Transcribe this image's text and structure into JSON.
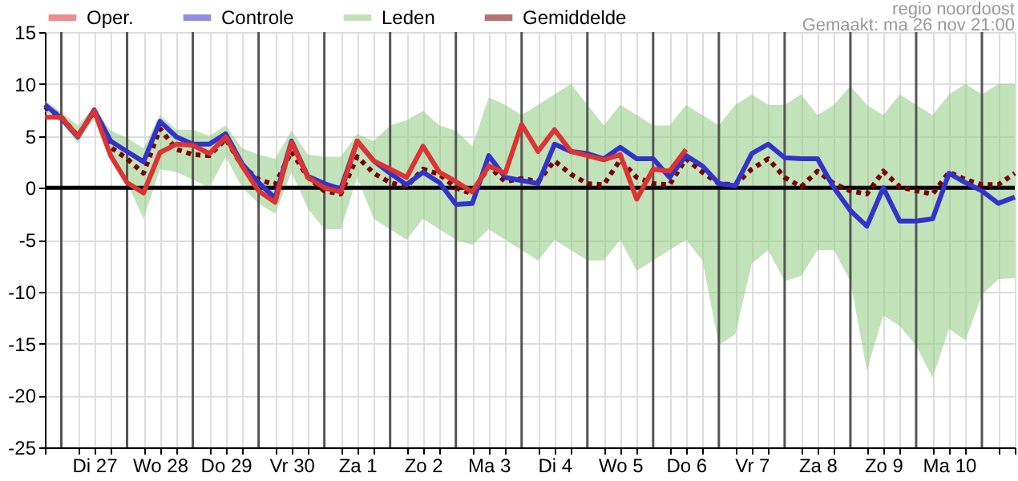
{
  "chart_data": {
    "type": "line",
    "annotations": [
      "regio noordoost",
      "Gemaakt: ma 26 nov 21:00"
    ],
    "x": [
      "--11-26T18:00",
      "--11-27T00:00",
      "--11-27T06:00",
      "--11-27T12:00",
      "--11-27T18:00",
      "--11-28T00:00",
      "--11-28T06:00",
      "--11-28T12:00",
      "--11-28T18:00",
      "--11-29T00:00",
      "--11-29T06:00",
      "--11-29T12:00",
      "--11-29T18:00",
      "--11-30T00:00",
      "--11-30T06:00",
      "--11-30T12:00",
      "--11-30T18:00",
      "--12-01T00:00",
      "--12-01T06:00",
      "--12-01T12:00",
      "--12-01T18:00",
      "--12-02T00:00",
      "--12-02T06:00",
      "--12-02T12:00",
      "--12-02T18:00",
      "--12-03T00:00",
      "--12-03T06:00",
      "--12-03T12:00",
      "--12-03T18:00",
      "--12-04T00:00",
      "--12-04T06:00",
      "--12-04T12:00",
      "--12-04T18:00",
      "--12-05T00:00",
      "--12-05T06:00",
      "--12-05T12:00",
      "--12-05T18:00",
      "--12-06T00:00",
      "--12-06T06:00",
      "--12-06T12:00",
      "--12-06T18:00",
      "--12-07T00:00",
      "--12-07T06:00",
      "--12-07T12:00",
      "--12-07T18:00",
      "--12-08T00:00",
      "--12-08T06:00",
      "--12-08T12:00",
      "--12-08T18:00",
      "--12-09T00:00",
      "--12-09T06:00",
      "--12-09T12:00",
      "--12-09T18:00",
      "--12-10T00:00",
      "--12-10T06:00",
      "--12-10T12:00",
      "--12-10T18:00",
      "--12-11T00:00",
      "--12-11T06:00",
      "--12-11T12:00"
    ],
    "series": [
      {
        "name": "Oper.",
        "color": "#dd3333",
        "values": [
          6.8,
          6.8,
          5.0,
          7.4,
          3.1,
          0.5,
          -0.5,
          3.4,
          4.2,
          4.1,
          3.3,
          4.9,
          2.1,
          -0.3,
          -1.4,
          4.4,
          1.0,
          0,
          -0.4,
          4.5,
          2.6,
          1.8,
          1.0,
          4.0,
          1.5,
          0.6,
          -0.4,
          2.1,
          1.4,
          6.1,
          3.5,
          5.6,
          3.5,
          3.1,
          2.7,
          3.2,
          -1.1,
          1.8,
          1.6,
          3.7,
          null,
          null,
          null,
          null,
          null,
          null,
          null,
          null,
          null,
          null,
          null,
          null,
          null,
          null,
          null,
          null,
          null,
          null,
          null,
          null
        ]
      },
      {
        "name": "Controle",
        "color": "#3333cc",
        "values": [
          8.0,
          6.7,
          4.9,
          7.5,
          4.5,
          3.5,
          2.5,
          6.4,
          4.9,
          4.2,
          4.2,
          5.2,
          2.3,
          0.5,
          -1.0,
          4.5,
          1.1,
          0.4,
          -0.1,
          4.5,
          2.6,
          1.4,
          0.3,
          1.5,
          0.5,
          -1.6,
          -1.5,
          3.1,
          1.0,
          0.7,
          0.4,
          4.2,
          3.5,
          3.3,
          2.8,
          3.9,
          2.8,
          2.8,
          1.0,
          3.1,
          2.1,
          0.4,
          0.2,
          3.3,
          4.2,
          2.9,
          2.8,
          2.8,
          0,
          -2.2,
          -3.7,
          0,
          -3.2,
          -3.2,
          -3.0,
          1.4,
          0.5,
          -0.3,
          -1.5,
          -0.9
        ]
      },
      {
        "name": "Leden",
        "type": "area",
        "color": "#8fcc80",
        "values": [
          null,
          null,
          null,
          null,
          null,
          null,
          null,
          null,
          null,
          null,
          null,
          null,
          null,
          null,
          null,
          null,
          null,
          null,
          null,
          null,
          null,
          null,
          null,
          null,
          null,
          null,
          null,
          null,
          null,
          null,
          null,
          null,
          null,
          null,
          null,
          null,
          null,
          null,
          null,
          null,
          null,
          null,
          null,
          null,
          null,
          null,
          null,
          null,
          null,
          null,
          null,
          null,
          null,
          null,
          null,
          null,
          null,
          null,
          null,
          null
        ],
        "lower": [
          7.3,
          6.3,
          4.3,
          6.8,
          2.8,
          0.5,
          -3.0,
          1.8,
          1.5,
          0.8,
          0.0,
          3.0,
          0.0,
          -1.5,
          -2.5,
          1.5,
          -2.0,
          -4.0,
          -4.0,
          1.0,
          -3.0,
          -4.0,
          -5.0,
          -3.0,
          -4.0,
          -5.0,
          -5.5,
          -4.0,
          -5.0,
          -6.0,
          -7.0,
          -5.0,
          -6.0,
          -7.0,
          -7.0,
          -5.0,
          -8.0,
          -7.0,
          -6.0,
          -5.0,
          -7.0,
          -15.2,
          -14.1,
          -7.3,
          -6.0,
          -9.0,
          -8.5,
          -6.0,
          -6.0,
          -9.0,
          -17.6,
          -12.3,
          -13.3,
          -15.2,
          -18.3,
          -13.6,
          -14.7,
          -10.3,
          -8.8,
          -8.7
        ],
        "upper": [
          8.4,
          7.3,
          6.0,
          7.8,
          5.5,
          4.8,
          3.8,
          7.0,
          5.6,
          5.6,
          5.0,
          6.0,
          3.8,
          3.2,
          2.8,
          5.5,
          3.2,
          3.0,
          3.0,
          5.2,
          4.5,
          6.0,
          6.5,
          7.4,
          6.0,
          5.5,
          4.0,
          8.7,
          8.0,
          7.0,
          8.0,
          9.0,
          10.0,
          8.0,
          6.0,
          8.0,
          7.0,
          6.0,
          6.0,
          8.0,
          7.0,
          6.0,
          8.0,
          9.0,
          8.0,
          8.0,
          9.0,
          7.0,
          8.0,
          9.8,
          8.0,
          7.0,
          9.0,
          8.0,
          7.0,
          9.0,
          10.0,
          9.0,
          10.0,
          10.0
        ]
      },
      {
        "name": "Gemiddelde",
        "color": "#7a0000",
        "line_style": "dotted",
        "values": [
          7.8,
          6.8,
          5.0,
          7.4,
          3.9,
          2.8,
          1.4,
          5.7,
          3.7,
          3.2,
          3.1,
          4.7,
          2.1,
          0.8,
          0.3,
          3.5,
          1.0,
          -0.3,
          -0.6,
          3.0,
          1.4,
          0.5,
          0.1,
          1.8,
          1.3,
          0,
          -0.6,
          2.1,
          0.6,
          0.9,
          0.6,
          2.6,
          1.3,
          0.4,
          0.3,
          2.7,
          1.0,
          0.4,
          0.3,
          2.8,
          1.5,
          0.4,
          0.3,
          1.8,
          2.8,
          1.0,
          0.1,
          1.6,
          0.4,
          -0.3,
          -0.6,
          1.6,
          0.1,
          -0.3,
          -0.6,
          1.5,
          0.8,
          0.3,
          0.3,
          1.4
        ]
      }
    ],
    "xlim": [
      "--11-26T18:00",
      "--12-11T12:00"
    ],
    "xticks": [
      {
        "value": "--11-26T18:00",
        "label": null
      },
      {
        "value": "--11-27T06:00",
        "label": null
      },
      {
        "value": "--11-27T12:00",
        "label": "Di 27"
      },
      {
        "value": "--11-27T18:00",
        "label": null
      },
      {
        "value": "--11-28T06:00",
        "label": null
      },
      {
        "value": "--11-28T12:00",
        "label": "Wo 28"
      },
      {
        "value": "--11-28T18:00",
        "label": null
      },
      {
        "value": "--11-29T06:00",
        "label": null
      },
      {
        "value": "--11-29T12:00",
        "label": "Do 29"
      },
      {
        "value": "--11-29T18:00",
        "label": null
      },
      {
        "value": "--11-30T06:00",
        "label": null
      },
      {
        "value": "--11-30T12:00",
        "label": "Vr 30"
      },
      {
        "value": "--11-30T18:00",
        "label": null
      },
      {
        "value": "--12-01T06:00",
        "label": null
      },
      {
        "value": "--12-01T12:00",
        "label": "Za 1"
      },
      {
        "value": "--12-01T18:00",
        "label": null
      },
      {
        "value": "--12-02T06:00",
        "label": null
      },
      {
        "value": "--12-02T12:00",
        "label": "Zo 2"
      },
      {
        "value": "--12-02T18:00",
        "label": null
      },
      {
        "value": "--12-03T06:00",
        "label": null
      },
      {
        "value": "--12-03T12:00",
        "label": "Ma 3"
      },
      {
        "value": "--12-03T18:00",
        "label": null
      },
      {
        "value": "--12-04T06:00",
        "label": null
      },
      {
        "value": "--12-04T12:00",
        "label": "Di 4"
      },
      {
        "value": "--12-04T18:00",
        "label": null
      },
      {
        "value": "--12-05T06:00",
        "label": null
      },
      {
        "value": "--12-05T12:00",
        "label": "Wo 5"
      },
      {
        "value": "--12-05T18:00",
        "label": null
      },
      {
        "value": "--12-06T06:00",
        "label": null
      },
      {
        "value": "--12-06T12:00",
        "label": "Do 6"
      },
      {
        "value": "--12-06T18:00",
        "label": null
      },
      {
        "value": "--12-07T06:00",
        "label": null
      },
      {
        "value": "--12-07T12:00",
        "label": "Vr 7"
      },
      {
        "value": "--12-07T18:00",
        "label": null
      },
      {
        "value": "--12-08T06:00",
        "label": null
      },
      {
        "value": "--12-08T12:00",
        "label": "Za 8"
      },
      {
        "value": "--12-08T18:00",
        "label": null
      },
      {
        "value": "--12-09T06:00",
        "label": null
      },
      {
        "value": "--12-09T12:00",
        "label": "Zo 9"
      },
      {
        "value": "--12-09T18:00",
        "label": null
      },
      {
        "value": "--12-10T06:00",
        "label": null
      },
      {
        "value": "--12-10T12:00",
        "label": "Ma 10"
      },
      {
        "value": "--12-10T18:00",
        "label": null
      },
      {
        "value": "--12-11T06:00",
        "label": null
      },
      {
        "value": "--12-11T12:00",
        "label": null
      }
    ],
    "ylim": [
      -25,
      15
    ],
    "yticks": [
      -25,
      -20,
      -15,
      -10,
      -5,
      0,
      5,
      10,
      15
    ],
    "grid": true,
    "legend": "top",
    "ref_lines": [
      {
        "axis": "x",
        "value": "--11-27T00:00",
        "color": "#555555"
      },
      {
        "axis": "x",
        "value": "--11-28T00:00",
        "color": "#555555"
      },
      {
        "axis": "x",
        "value": "--11-29T00:00",
        "color": "#555555"
      },
      {
        "axis": "x",
        "value": "--11-30T00:00",
        "color": "#555555"
      },
      {
        "axis": "x",
        "value": "--12-01T00:00",
        "color": "#555555"
      },
      {
        "axis": "x",
        "value": "--12-02T00:00",
        "color": "#555555"
      },
      {
        "axis": "x",
        "value": "--12-03T00:00",
        "color": "#555555"
      },
      {
        "axis": "x",
        "value": "--12-04T00:00",
        "color": "#555555"
      },
      {
        "axis": "x",
        "value": "--12-05T00:00",
        "color": "#555555"
      },
      {
        "axis": "x",
        "value": "--12-06T00:00",
        "color": "#555555"
      },
      {
        "axis": "x",
        "value": "--12-07T00:00",
        "color": "#555555"
      },
      {
        "axis": "x",
        "value": "--12-08T00:00",
        "color": "#555555"
      },
      {
        "axis": "x",
        "value": "--12-09T00:00",
        "color": "#555555"
      },
      {
        "axis": "x",
        "value": "--12-10T00:00",
        "color": "#555555"
      },
      {
        "axis": "x",
        "value": "--12-11T00:00",
        "color": "#555555"
      },
      {
        "axis": "y",
        "value": 0,
        "color": "#000000"
      }
    ]
  }
}
